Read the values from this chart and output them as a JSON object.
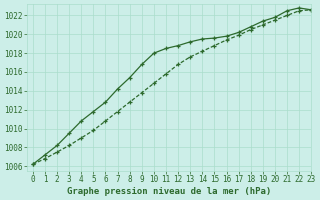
{
  "title": "Graphe pression niveau de la mer (hPa)",
  "background_color": "#cceee8",
  "grid_color": "#aaddcc",
  "line_color": "#2d6a2d",
  "xlim": [
    -0.5,
    23
  ],
  "ylim": [
    1005.5,
    1023.2
  ],
  "yticks": [
    1006,
    1008,
    1010,
    1012,
    1014,
    1016,
    1018,
    1020,
    1022
  ],
  "xticks": [
    0,
    1,
    2,
    3,
    4,
    5,
    6,
    7,
    8,
    9,
    10,
    11,
    12,
    13,
    14,
    15,
    16,
    17,
    18,
    19,
    20,
    21,
    22,
    23
  ],
  "series1": {
    "x": [
      0,
      1,
      2,
      3,
      4,
      5,
      6,
      7,
      8,
      9,
      10,
      11,
      12,
      13,
      14,
      15,
      16,
      17,
      18,
      19,
      20,
      21,
      22,
      23
    ],
    "y": [
      1006.2,
      1007.2,
      1008.2,
      1009.5,
      1010.8,
      1011.8,
      1012.8,
      1014.2,
      1015.4,
      1016.8,
      1018.0,
      1018.5,
      1018.8,
      1019.2,
      1019.5,
      1019.6,
      1019.8,
      1020.2,
      1020.8,
      1021.4,
      1021.8,
      1022.5,
      1022.8,
      1022.6
    ]
  },
  "series2": {
    "x": [
      0,
      1,
      2,
      3,
      4,
      5,
      6,
      7,
      8,
      9,
      10,
      11,
      12,
      13,
      14,
      15,
      16,
      17,
      18,
      19,
      20,
      21,
      22,
      23
    ],
    "y": [
      1006.2,
      1006.8,
      1007.5,
      1008.2,
      1009.0,
      1009.8,
      1010.8,
      1011.8,
      1012.8,
      1013.8,
      1014.8,
      1015.8,
      1016.8,
      1017.6,
      1018.2,
      1018.8,
      1019.4,
      1019.9,
      1020.5,
      1021.0,
      1021.5,
      1022.0,
      1022.5,
      1022.6
    ]
  }
}
